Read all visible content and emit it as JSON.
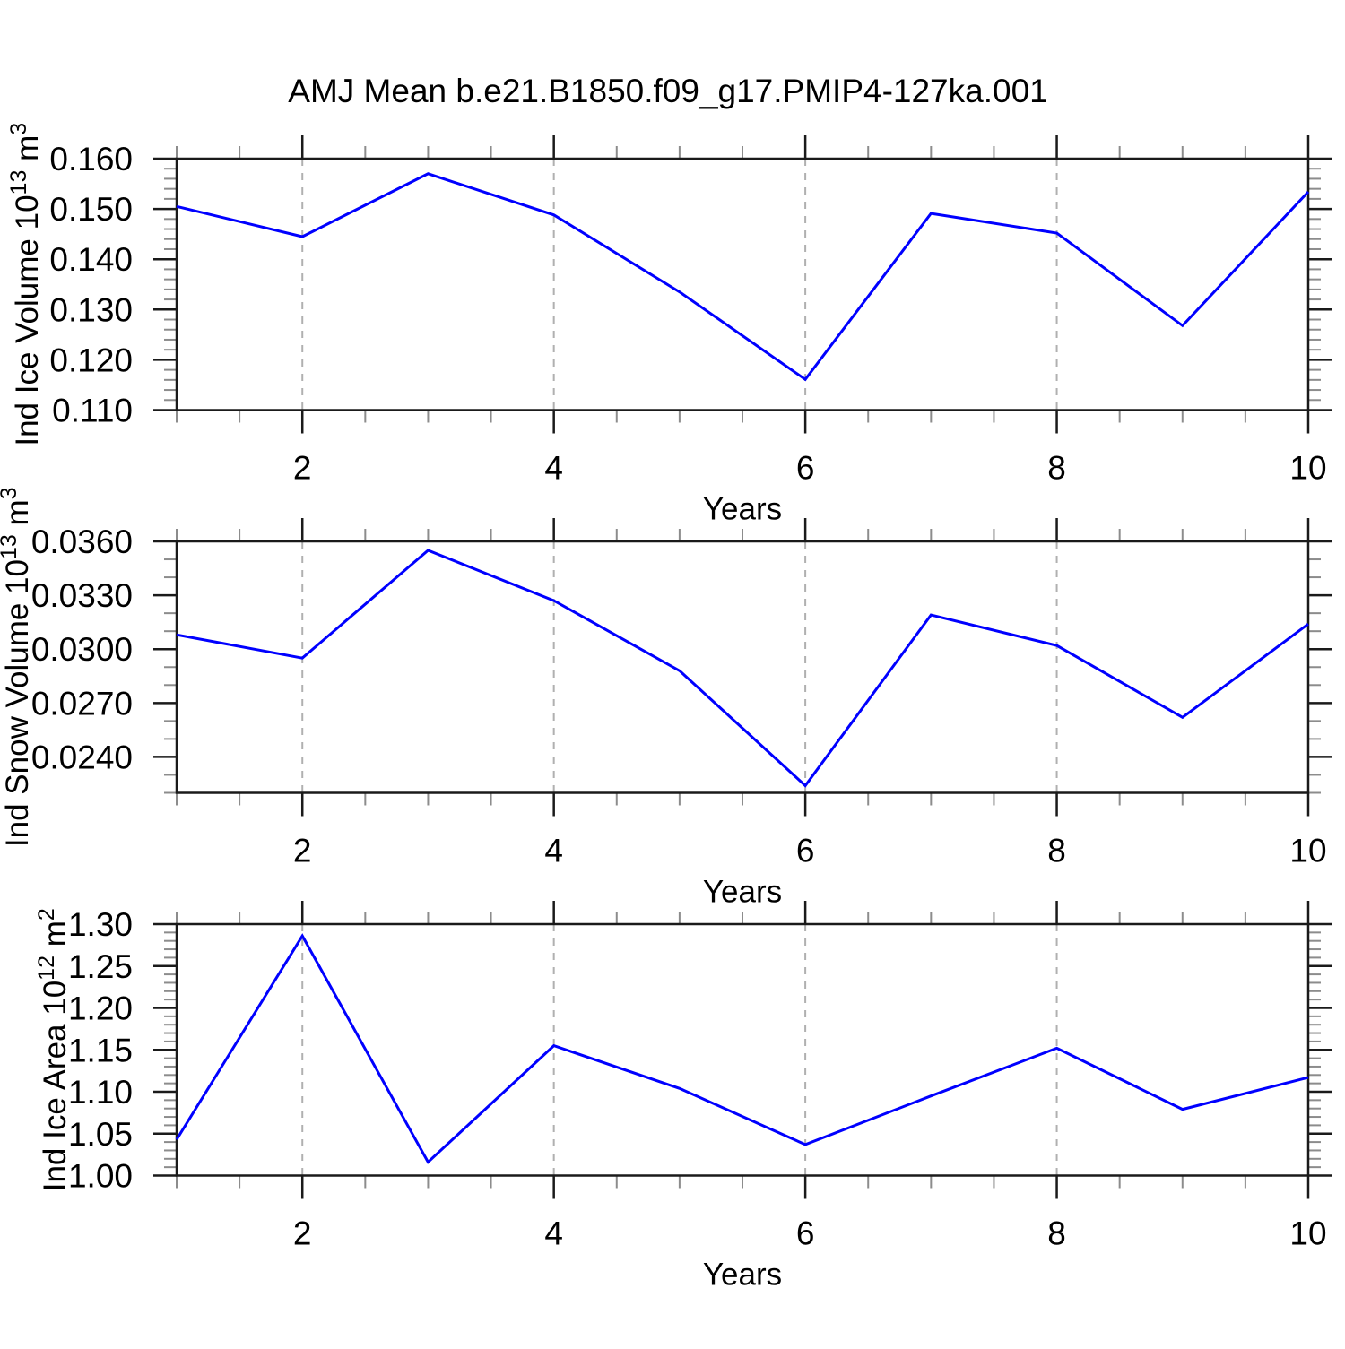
{
  "title": "AMJ Mean b.e21.B1850.f09_g17.PMIP4-127ka.001",
  "styles": {
    "line_color": "#0000ff",
    "frame_color": "#1a1a1a",
    "major_tick_color": "#1a1a1a",
    "minor_tick_color": "#8c8c8c",
    "grid_color": "#b0b0b0",
    "background": "#ffffff",
    "text_color": "#000000"
  },
  "chart_data": [
    {
      "type": "line",
      "name": "ind-ice-volume",
      "ylabel": "Ind Ice Volume 10^13 m^3",
      "ylabel_segments": [
        {
          "t": "Ind Ice Volume 10"
        },
        {
          "t": "13",
          "sup": true
        },
        {
          "t": " m"
        },
        {
          "t": "3",
          "sup": true
        }
      ],
      "xlabel": "Years",
      "x": [
        1,
        2,
        3,
        4,
        5,
        6,
        7,
        8,
        9,
        10
      ],
      "values": [
        0.1505,
        0.1445,
        0.157,
        0.1488,
        0.1335,
        0.1161,
        0.1491,
        0.1452,
        0.1268,
        0.1534
      ],
      "xlim": [
        1,
        10
      ],
      "ylim": [
        0.11,
        0.16
      ],
      "xticks": [
        2,
        4,
        6,
        8,
        10
      ],
      "xtick_labels": [
        "2",
        "4",
        "6",
        "8",
        "10"
      ],
      "xminor_step": 0.5,
      "grid_x": [
        2,
        4,
        6,
        8
      ],
      "yticks": [
        0.11,
        0.12,
        0.13,
        0.14,
        0.15,
        0.16
      ],
      "ytick_labels": [
        "0.110",
        "0.120",
        "0.130",
        "0.140",
        "0.150",
        "0.160"
      ],
      "ytick_minor_step": 0.002
    },
    {
      "type": "line",
      "name": "ind-snow-volume",
      "ylabel": "Ind Snow Volume 10^13 m^3",
      "ylabel_segments": [
        {
          "t": "Ind Snow Volume 10"
        },
        {
          "t": "13",
          "sup": true
        },
        {
          "t": " m"
        },
        {
          "t": "3",
          "sup": true
        }
      ],
      "xlabel": "Years",
      "x": [
        1,
        2,
        3,
        4,
        5,
        6,
        7,
        8,
        9,
        10
      ],
      "values": [
        0.0308,
        0.0295,
        0.0355,
        0.0327,
        0.0288,
        0.0224,
        0.0319,
        0.0302,
        0.0262,
        0.0314
      ],
      "xlim": [
        1,
        10
      ],
      "ylim": [
        0.022,
        0.036
      ],
      "xticks": [
        2,
        4,
        6,
        8,
        10
      ],
      "xtick_labels": [
        "2",
        "4",
        "6",
        "8",
        "10"
      ],
      "xminor_step": 0.5,
      "grid_x": [
        2,
        4,
        6,
        8
      ],
      "yticks": [
        0.024,
        0.027,
        0.03,
        0.033,
        0.036
      ],
      "ytick_labels": [
        "0.0240",
        "0.0270",
        "0.0300",
        "0.0330",
        "0.0360"
      ],
      "ytick_minor_step": 0.001
    },
    {
      "type": "line",
      "name": "ind-ice-area",
      "ylabel": "Ind Ice Area 10^12 m^2",
      "ylabel_segments": [
        {
          "t": "Ind Ice Area 10"
        },
        {
          "t": "12",
          "sup": true
        },
        {
          "t": " m"
        },
        {
          "t": "2",
          "sup": true
        }
      ],
      "xlabel": "Years",
      "x": [
        1,
        2,
        3,
        4,
        5,
        6,
        7,
        8,
        9,
        10
      ],
      "values": [
        1.043,
        1.286,
        1.016,
        1.155,
        1.104,
        1.037,
        1.095,
        1.152,
        1.079,
        1.117
      ],
      "xlim": [
        1,
        10
      ],
      "ylim": [
        1.0,
        1.3
      ],
      "xticks": [
        2,
        4,
        6,
        8,
        10
      ],
      "xtick_labels": [
        "2",
        "4",
        "6",
        "8",
        "10"
      ],
      "xminor_step": 0.5,
      "grid_x": [
        2,
        4,
        6,
        8
      ],
      "yticks": [
        1.0,
        1.05,
        1.1,
        1.15,
        1.2,
        1.25,
        1.3
      ],
      "ytick_labels": [
        "1.00",
        "1.05",
        "1.10",
        "1.15",
        "1.20",
        "1.25",
        "1.30"
      ],
      "ytick_minor_step": 0.01
    }
  ]
}
